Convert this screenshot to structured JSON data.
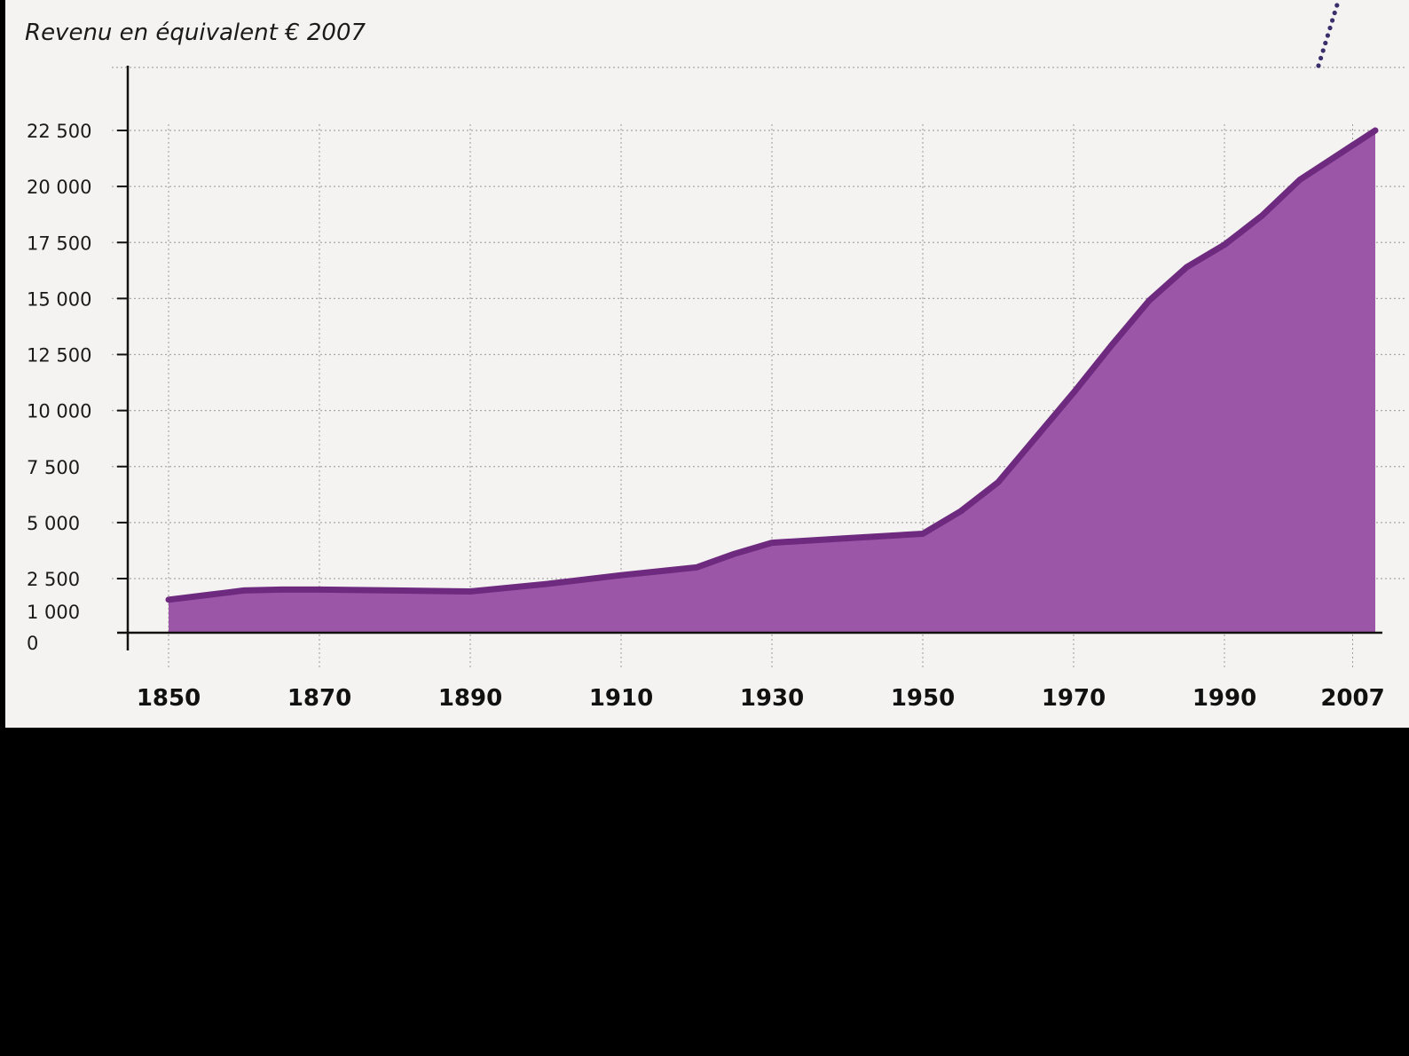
{
  "chart_data": {
    "type": "area",
    "title": "",
    "ylabel": "Revenu en équivalent  € 2007",
    "xlabel": "",
    "x": [
      1850,
      1855,
      1860,
      1865,
      1870,
      1880,
      1890,
      1900,
      1910,
      1920,
      1925,
      1930,
      1940,
      1950,
      1955,
      1960,
      1965,
      1970,
      1975,
      1980,
      1985,
      1990,
      1995,
      2000,
      2005,
      2010
    ],
    "values": [
      1350,
      1600,
      1850,
      1900,
      1900,
      1850,
      1800,
      2200,
      2650,
      3000,
      3600,
      4100,
      4300,
      4500,
      5500,
      6800,
      8800,
      10800,
      12900,
      14900,
      16400,
      17400,
      18700,
      20300,
      21400,
      22500
    ],
    "x_ticks": [
      "1850",
      "1870",
      "1890",
      "1910",
      "1930",
      "1950",
      "1970",
      "1990",
      "2007"
    ],
    "x_tick_values": [
      1850,
      1870,
      1890,
      1910,
      1930,
      1950,
      1970,
      1990,
      2007
    ],
    "y_ticks": [
      "0",
      "1 000",
      "2 500",
      "5 000",
      "7 500",
      "10 000",
      "12 500",
      "15 000",
      "17 500",
      "20 000",
      "22 500"
    ],
    "y_tick_values": [
      0,
      1000,
      2500,
      5000,
      7500,
      10000,
      12500,
      15000,
      17500,
      20000,
      22500
    ],
    "xlim": [
      1850,
      2010
    ],
    "ylim": [
      0,
      25000
    ],
    "grid": true,
    "colors": {
      "fill": "#9b56a8",
      "line": "#6e2a7f",
      "grid": "#a8a8a8",
      "background": "#f4f3f1"
    }
  }
}
